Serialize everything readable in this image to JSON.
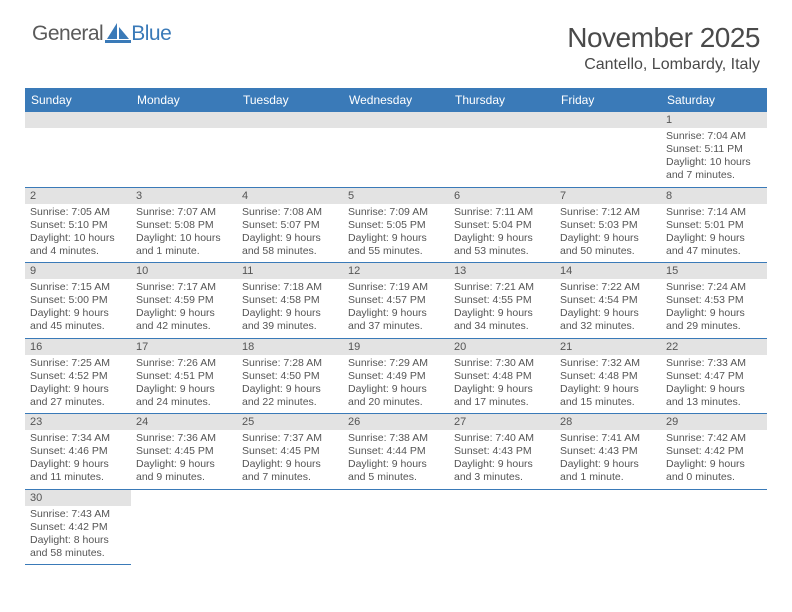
{
  "logo": {
    "pre": "General",
    "post": "Blue"
  },
  "title": "November 2025",
  "location": "Cantello, Lombardy, Italy",
  "header_bg": "#3a7ab8",
  "day_headers": [
    "Sunday",
    "Monday",
    "Tuesday",
    "Wednesday",
    "Thursday",
    "Friday",
    "Saturday"
  ],
  "weeks": [
    [
      {
        "n": "",
        "lines": [
          "",
          "",
          "",
          ""
        ]
      },
      {
        "n": "",
        "lines": [
          "",
          "",
          "",
          ""
        ]
      },
      {
        "n": "",
        "lines": [
          "",
          "",
          "",
          ""
        ]
      },
      {
        "n": "",
        "lines": [
          "",
          "",
          "",
          ""
        ]
      },
      {
        "n": "",
        "lines": [
          "",
          "",
          "",
          ""
        ]
      },
      {
        "n": "",
        "lines": [
          "",
          "",
          "",
          ""
        ]
      },
      {
        "n": "1",
        "lines": [
          "Sunrise: 7:04 AM",
          "Sunset: 5:11 PM",
          "Daylight: 10 hours",
          "and 7 minutes."
        ]
      }
    ],
    [
      {
        "n": "2",
        "lines": [
          "Sunrise: 7:05 AM",
          "Sunset: 5:10 PM",
          "Daylight: 10 hours",
          "and 4 minutes."
        ]
      },
      {
        "n": "3",
        "lines": [
          "Sunrise: 7:07 AM",
          "Sunset: 5:08 PM",
          "Daylight: 10 hours",
          "and 1 minute."
        ]
      },
      {
        "n": "4",
        "lines": [
          "Sunrise: 7:08 AM",
          "Sunset: 5:07 PM",
          "Daylight: 9 hours",
          "and 58 minutes."
        ]
      },
      {
        "n": "5",
        "lines": [
          "Sunrise: 7:09 AM",
          "Sunset: 5:05 PM",
          "Daylight: 9 hours",
          "and 55 minutes."
        ]
      },
      {
        "n": "6",
        "lines": [
          "Sunrise: 7:11 AM",
          "Sunset: 5:04 PM",
          "Daylight: 9 hours",
          "and 53 minutes."
        ]
      },
      {
        "n": "7",
        "lines": [
          "Sunrise: 7:12 AM",
          "Sunset: 5:03 PM",
          "Daylight: 9 hours",
          "and 50 minutes."
        ]
      },
      {
        "n": "8",
        "lines": [
          "Sunrise: 7:14 AM",
          "Sunset: 5:01 PM",
          "Daylight: 9 hours",
          "and 47 minutes."
        ]
      }
    ],
    [
      {
        "n": "9",
        "lines": [
          "Sunrise: 7:15 AM",
          "Sunset: 5:00 PM",
          "Daylight: 9 hours",
          "and 45 minutes."
        ]
      },
      {
        "n": "10",
        "lines": [
          "Sunrise: 7:17 AM",
          "Sunset: 4:59 PM",
          "Daylight: 9 hours",
          "and 42 minutes."
        ]
      },
      {
        "n": "11",
        "lines": [
          "Sunrise: 7:18 AM",
          "Sunset: 4:58 PM",
          "Daylight: 9 hours",
          "and 39 minutes."
        ]
      },
      {
        "n": "12",
        "lines": [
          "Sunrise: 7:19 AM",
          "Sunset: 4:57 PM",
          "Daylight: 9 hours",
          "and 37 minutes."
        ]
      },
      {
        "n": "13",
        "lines": [
          "Sunrise: 7:21 AM",
          "Sunset: 4:55 PM",
          "Daylight: 9 hours",
          "and 34 minutes."
        ]
      },
      {
        "n": "14",
        "lines": [
          "Sunrise: 7:22 AM",
          "Sunset: 4:54 PM",
          "Daylight: 9 hours",
          "and 32 minutes."
        ]
      },
      {
        "n": "15",
        "lines": [
          "Sunrise: 7:24 AM",
          "Sunset: 4:53 PM",
          "Daylight: 9 hours",
          "and 29 minutes."
        ]
      }
    ],
    [
      {
        "n": "16",
        "lines": [
          "Sunrise: 7:25 AM",
          "Sunset: 4:52 PM",
          "Daylight: 9 hours",
          "and 27 minutes."
        ]
      },
      {
        "n": "17",
        "lines": [
          "Sunrise: 7:26 AM",
          "Sunset: 4:51 PM",
          "Daylight: 9 hours",
          "and 24 minutes."
        ]
      },
      {
        "n": "18",
        "lines": [
          "Sunrise: 7:28 AM",
          "Sunset: 4:50 PM",
          "Daylight: 9 hours",
          "and 22 minutes."
        ]
      },
      {
        "n": "19",
        "lines": [
          "Sunrise: 7:29 AM",
          "Sunset: 4:49 PM",
          "Daylight: 9 hours",
          "and 20 minutes."
        ]
      },
      {
        "n": "20",
        "lines": [
          "Sunrise: 7:30 AM",
          "Sunset: 4:48 PM",
          "Daylight: 9 hours",
          "and 17 minutes."
        ]
      },
      {
        "n": "21",
        "lines": [
          "Sunrise: 7:32 AM",
          "Sunset: 4:48 PM",
          "Daylight: 9 hours",
          "and 15 minutes."
        ]
      },
      {
        "n": "22",
        "lines": [
          "Sunrise: 7:33 AM",
          "Sunset: 4:47 PM",
          "Daylight: 9 hours",
          "and 13 minutes."
        ]
      }
    ],
    [
      {
        "n": "23",
        "lines": [
          "Sunrise: 7:34 AM",
          "Sunset: 4:46 PM",
          "Daylight: 9 hours",
          "and 11 minutes."
        ]
      },
      {
        "n": "24",
        "lines": [
          "Sunrise: 7:36 AM",
          "Sunset: 4:45 PM",
          "Daylight: 9 hours",
          "and 9 minutes."
        ]
      },
      {
        "n": "25",
        "lines": [
          "Sunrise: 7:37 AM",
          "Sunset: 4:45 PM",
          "Daylight: 9 hours",
          "and 7 minutes."
        ]
      },
      {
        "n": "26",
        "lines": [
          "Sunrise: 7:38 AM",
          "Sunset: 4:44 PM",
          "Daylight: 9 hours",
          "and 5 minutes."
        ]
      },
      {
        "n": "27",
        "lines": [
          "Sunrise: 7:40 AM",
          "Sunset: 4:43 PM",
          "Daylight: 9 hours",
          "and 3 minutes."
        ]
      },
      {
        "n": "28",
        "lines": [
          "Sunrise: 7:41 AM",
          "Sunset: 4:43 PM",
          "Daylight: 9 hours",
          "and 1 minute."
        ]
      },
      {
        "n": "29",
        "lines": [
          "Sunrise: 7:42 AM",
          "Sunset: 4:42 PM",
          "Daylight: 9 hours",
          "and 0 minutes."
        ]
      }
    ],
    [
      {
        "n": "30",
        "lines": [
          "Sunrise: 7:43 AM",
          "Sunset: 4:42 PM",
          "Daylight: 8 hours",
          "and 58 minutes."
        ]
      },
      {
        "n": "",
        "lines": [
          "",
          "",
          "",
          ""
        ],
        "trailing": true
      },
      {
        "n": "",
        "lines": [
          "",
          "",
          "",
          ""
        ],
        "trailing": true
      },
      {
        "n": "",
        "lines": [
          "",
          "",
          "",
          ""
        ],
        "trailing": true
      },
      {
        "n": "",
        "lines": [
          "",
          "",
          "",
          ""
        ],
        "trailing": true
      },
      {
        "n": "",
        "lines": [
          "",
          "",
          "",
          ""
        ],
        "trailing": true
      },
      {
        "n": "",
        "lines": [
          "",
          "",
          "",
          ""
        ],
        "trailing": true
      }
    ]
  ]
}
